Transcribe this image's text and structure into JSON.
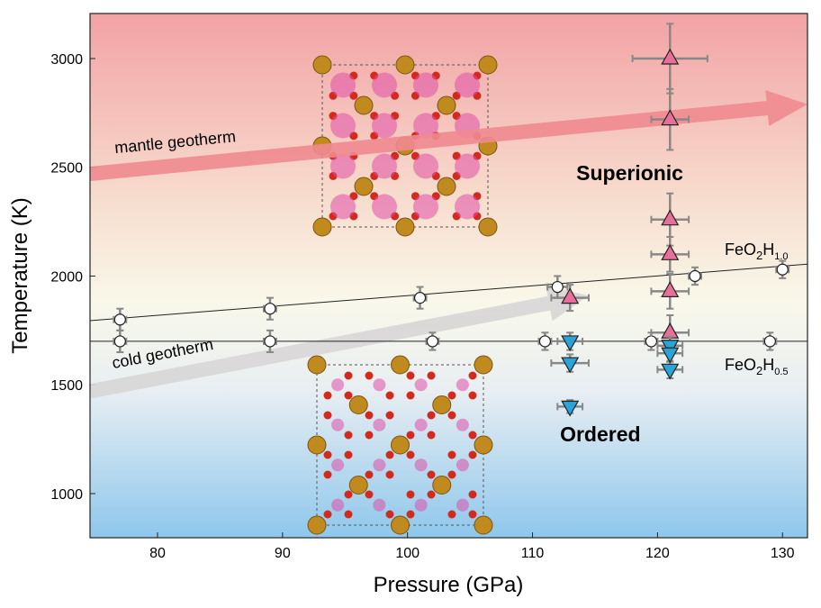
{
  "chart_data": {
    "type": "scatter",
    "xlabel": "Pressure (GPa)",
    "ylabel": "Temperature (K)",
    "xlim": [
      74.6,
      132
    ],
    "ylim": [
      797,
      3207
    ],
    "xticks": [
      80,
      90,
      100,
      110,
      120,
      130
    ],
    "yticks": [
      1000,
      1500,
      2000,
      2500,
      3000
    ],
    "series": [
      {
        "marker": "circle",
        "color": "#ffffff",
        "x": [
          77,
          89,
          101,
          112,
          123,
          130
        ],
        "y": [
          1800,
          1850,
          1900,
          1950,
          2000,
          2030
        ],
        "xerr": [
          0.5,
          0.5,
          0.5,
          0.8,
          0.5,
          0.5
        ],
        "yerr": [
          50,
          50,
          50,
          50,
          40,
          40
        ]
      },
      {
        "marker": "circle",
        "color": "#ffffff",
        "x": [
          77,
          89,
          102,
          111,
          119.5,
          129
        ],
        "y": [
          1700,
          1700,
          1700,
          1700,
          1700,
          1700
        ],
        "xerr": [
          0.5,
          0.5,
          0.5,
          0.5,
          0.5,
          0.5
        ],
        "yerr": [
          50,
          50,
          40,
          40,
          40,
          40
        ]
      },
      {
        "marker": "triangle-up",
        "color": "#e86f9a",
        "x": [
          113,
          121,
          121,
          121,
          121,
          121,
          121
        ],
        "y": [
          1900,
          3000,
          2720,
          2260,
          2100,
          1930,
          1740
        ],
        "xerr": [
          1.5,
          3,
          1.5,
          1.5,
          1.5,
          1.5,
          1.5
        ],
        "yerr": [
          60,
          160,
          140,
          120,
          80,
          80,
          80
        ]
      },
      {
        "marker": "triangle-down",
        "color": "#2aa3d6",
        "x": [
          113,
          113,
          113,
          121,
          121,
          121
        ],
        "y": [
          1700,
          1600,
          1400,
          1680,
          1645,
          1570
        ],
        "xerr": [
          1,
          1.5,
          1,
          1,
          1,
          1
        ],
        "yerr": [
          40,
          40,
          30,
          40,
          40,
          40
        ]
      }
    ],
    "fit_lines": [
      {
        "x": [
          74.6,
          132
        ],
        "y": [
          1795,
          2055
        ],
        "label": [
          "FeO",
          "2",
          "H",
          "1.0"
        ]
      },
      {
        "x": [
          74.6,
          132
        ],
        "y": [
          1700,
          1700
        ],
        "label": [
          "FeO",
          "2",
          "H",
          "0.5"
        ]
      }
    ],
    "arrows": [
      {
        "label": "mantle geotherm",
        "color": "#f08a90",
        "x": [
          74.6,
          132
        ],
        "y": [
          2470,
          2790
        ]
      },
      {
        "label": "cold geotherm",
        "color": "#d8d6d6",
        "x": [
          74.6,
          114.5
        ],
        "y": [
          1470,
          1910
        ]
      }
    ],
    "annotations": [
      {
        "text": "Superionic",
        "x": [
          113.5
        ],
        "y": [
          2440
        ]
      },
      {
        "text": "Ordered",
        "x": [
          112.2
        ],
        "y": [
          1240
        ]
      }
    ]
  }
}
